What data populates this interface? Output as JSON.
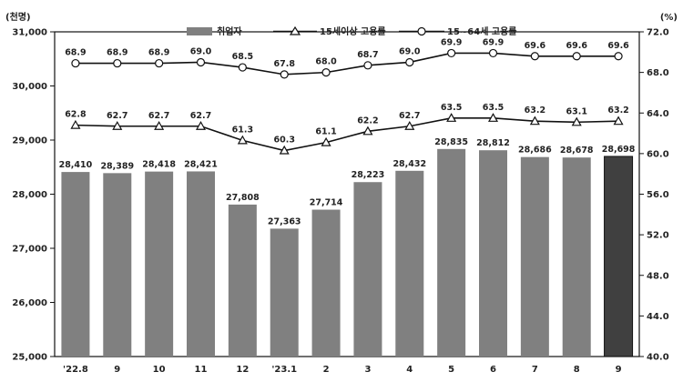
{
  "chart_data": {
    "type": "bar",
    "categories": [
      "'22.8",
      "9",
      "10",
      "11",
      "12",
      "'23.1",
      "2",
      "3",
      "4",
      "5",
      "6",
      "7",
      "8",
      "9"
    ],
    "left_unit": "(천명)",
    "right_unit": "(%)",
    "ylim_left": [
      25000,
      31000
    ],
    "ylim_right": [
      40.0,
      72.0
    ],
    "left_ticks": [
      "25,000",
      "26,000",
      "27,000",
      "28,000",
      "29,000",
      "30,000",
      "31,000"
    ],
    "right_ticks": [
      "40.0",
      "44.0",
      "48.0",
      "52.0",
      "56.0",
      "60.0",
      "64.0",
      "68.0",
      "72.0"
    ],
    "grid": false,
    "legend_position": "top-center",
    "series": [
      {
        "name": "취업자",
        "kind": "bar",
        "axis": "left",
        "values": [
          28410,
          28389,
          28418,
          28421,
          27808,
          27363,
          27714,
          28223,
          28432,
          28835,
          28812,
          28686,
          28678,
          28698
        ],
        "labels": [
          "28,410",
          "28,389",
          "28,418",
          "28,421",
          "27,808",
          "27,363",
          "27,714",
          "28,223",
          "28,432",
          "28,835",
          "28,812",
          "28,686",
          "28,678",
          "28,698"
        ],
        "color": "#808080",
        "highlight_color": "#404040"
      },
      {
        "name": "15세이상 고용률",
        "kind": "line",
        "marker": "triangle",
        "axis": "right",
        "values": [
          62.8,
          62.7,
          62.7,
          62.7,
          61.3,
          60.3,
          61.1,
          62.2,
          62.7,
          63.5,
          63.5,
          63.2,
          63.1,
          63.2
        ],
        "labels": [
          "62.8",
          "62.7",
          "62.7",
          "62.7",
          "61.3",
          "60.3",
          "61.1",
          "62.2",
          "62.7",
          "63.5",
          "63.5",
          "63.2",
          "63.1",
          "63.2"
        ]
      },
      {
        "name": "15~64세 고용률",
        "kind": "line",
        "marker": "circle",
        "axis": "right",
        "values": [
          68.9,
          68.9,
          68.9,
          69.0,
          68.5,
          67.8,
          68.0,
          68.7,
          69.0,
          69.9,
          69.9,
          69.6,
          69.6,
          69.6
        ],
        "labels": [
          "68.9",
          "68.9",
          "68.9",
          "69.0",
          "68.5",
          "67.8",
          "68.0",
          "68.7",
          "69.0",
          "69.9",
          "69.9",
          "69.6",
          "69.6",
          "69.6"
        ]
      }
    ]
  }
}
